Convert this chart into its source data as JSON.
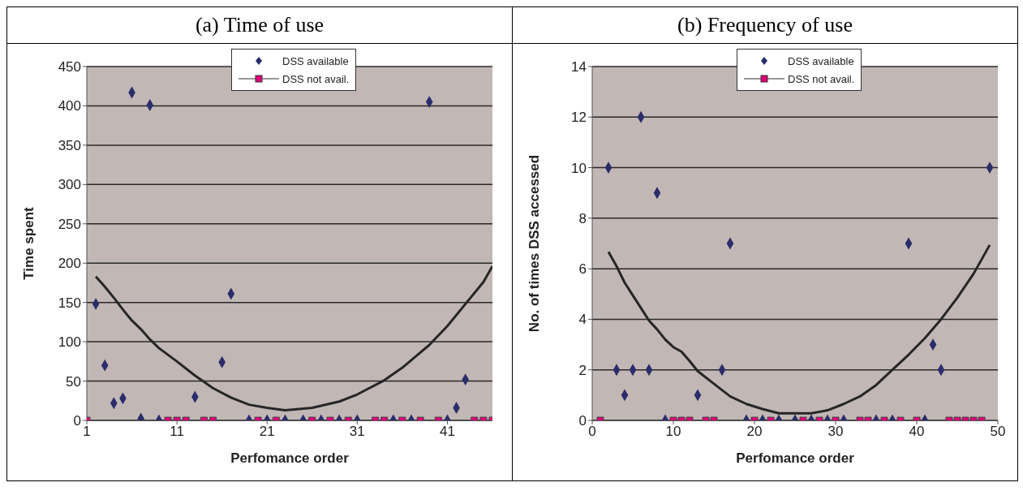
{
  "chart_data": [
    {
      "type": "scatter",
      "title": "(a) Time of use",
      "xlabel": "Perfomance order",
      "ylabel": "Time spent",
      "xlim": [
        1,
        46
      ],
      "xticks": [
        1,
        11,
        21,
        31,
        41
      ],
      "ylim": [
        0,
        450
      ],
      "yticks": [
        0,
        50,
        100,
        150,
        200,
        250,
        300,
        350,
        400,
        450
      ],
      "grid": "y",
      "legend": "top",
      "series": [
        {
          "name": "DSS not avail.",
          "type": "line",
          "color": "#e2007a",
          "marker": "square",
          "x": [
            1,
            10,
            11,
            12,
            14,
            15,
            20,
            22,
            26,
            28,
            30,
            33,
            34,
            36,
            38,
            40,
            44,
            45,
            46
          ],
          "values": [
            0,
            0,
            0,
            0,
            0,
            0,
            0,
            0,
            0,
            0,
            0,
            0,
            0,
            0,
            0,
            0,
            0,
            0,
            0
          ]
        },
        {
          "name": "DSS available",
          "color": "#2b2d6b",
          "marker": "diamond",
          "x": [
            2,
            3,
            4,
            5,
            6,
            7,
            8,
            9,
            13,
            16,
            17,
            19,
            21,
            23,
            25,
            27,
            29,
            31,
            35,
            37,
            39,
            41,
            42,
            43
          ],
          "values": [
            148,
            70,
            22,
            28,
            417,
            2,
            401,
            0,
            30,
            74,
            161,
            0,
            0,
            0,
            0,
            0,
            0,
            0,
            0,
            0,
            405,
            0,
            16,
            52
          ]
        },
        {
          "type": "line",
          "color": "#262626",
          "marker": "none",
          "x": [
            2,
            3,
            4,
            5,
            6,
            7,
            8,
            9,
            11,
            13,
            15,
            17,
            19,
            21,
            23,
            26,
            29,
            31,
            34,
            36,
            39,
            41,
            43,
            45,
            46
          ],
          "values": [
            183,
            170,
            156,
            141,
            127,
            116,
            103,
            92,
            75,
            57,
            41,
            29,
            20,
            16,
            13,
            16,
            24,
            33,
            51,
            67,
            96,
            120,
            148,
            176,
            196
          ]
        }
      ]
    },
    {
      "type": "scatter",
      "title": "(b) Frequency of use",
      "xlabel": "Perfomance order",
      "ylabel": "No. of times DSS accessed",
      "xlim": [
        0,
        50
      ],
      "xticks": [
        0,
        10,
        20,
        30,
        40,
        50
      ],
      "ylim": [
        0,
        14
      ],
      "yticks": [
        0,
        2,
        4,
        6,
        8,
        10,
        12,
        14
      ],
      "grid": "y",
      "legend": "top",
      "series": [
        {
          "name": "DSS not avail.",
          "type": "line",
          "color": "#e2007a",
          "marker": "square",
          "x": [
            1,
            10,
            11,
            12,
            14,
            15,
            20,
            22,
            26,
            28,
            30,
            33,
            34,
            36,
            38,
            40,
            44,
            45,
            46,
            47,
            48
          ],
          "values": [
            0,
            0,
            0,
            0,
            0,
            0,
            0,
            0,
            0,
            0,
            0,
            0,
            0,
            0,
            0,
            0,
            0,
            0,
            0,
            0,
            0
          ]
        },
        {
          "name": "DSS available",
          "color": "#2b2d6b",
          "marker": "diamond",
          "x": [
            2,
            3,
            4,
            5,
            6,
            7,
            8,
            9,
            13,
            16,
            17,
            19,
            21,
            23,
            25,
            27,
            29,
            31,
            35,
            37,
            39,
            41,
            42,
            43,
            49
          ],
          "values": [
            10,
            2,
            1,
            2,
            12,
            2,
            9,
            0,
            1,
            2,
            7,
            0,
            0,
            0,
            0,
            0,
            0,
            0,
            0,
            0,
            7,
            0,
            3,
            2,
            10
          ]
        },
        {
          "type": "line",
          "color": "#262626",
          "marker": "none",
          "x": [
            2,
            3,
            4,
            5,
            6,
            7,
            8,
            9,
            10,
            11,
            12,
            13,
            15,
            17,
            19,
            21,
            23,
            25,
            27,
            29,
            31,
            33,
            35,
            37,
            39,
            41,
            43,
            45,
            47,
            49
          ],
          "values": [
            6.67,
            6.1,
            5.45,
            4.95,
            4.45,
            3.95,
            3.6,
            3.2,
            2.9,
            2.72,
            2.35,
            1.95,
            1.45,
            0.95,
            0.65,
            0.45,
            0.28,
            0.28,
            0.28,
            0.4,
            0.65,
            0.95,
            1.4,
            2.0,
            2.6,
            3.25,
            4.0,
            4.85,
            5.8,
            6.94
          ]
        }
      ]
    }
  ]
}
